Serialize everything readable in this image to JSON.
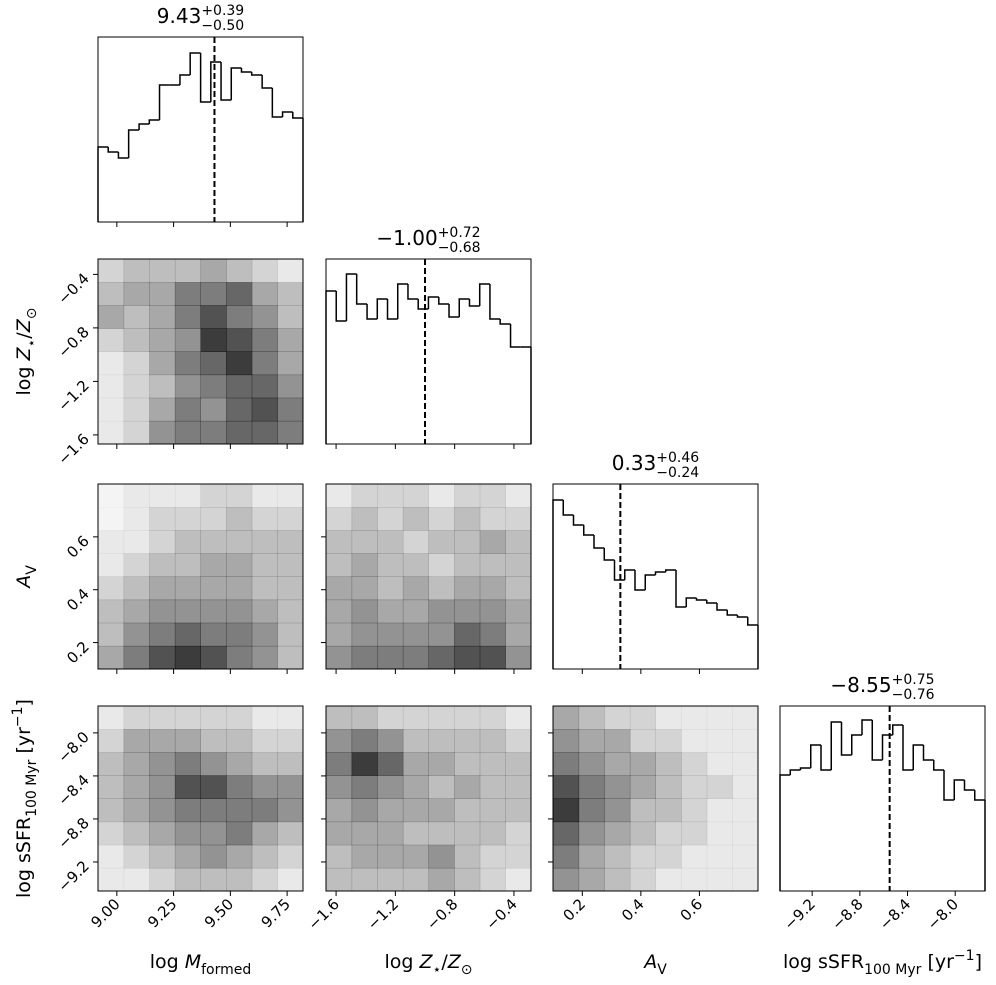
{
  "chart_data": {
    "type": "corner",
    "line_color": "#000000",
    "density_color": "#000000",
    "hist_ylim": [
      0,
      185
    ],
    "parameters": [
      {
        "label": [
          {
            "text": "log "
          },
          {
            "text": "M",
            "style": "italic"
          },
          {
            "text": "formed",
            "style": "sub"
          }
        ],
        "lim": [
          8.917,
          9.82
        ],
        "ticks": [
          {
            "value": 9,
            "label": "9.00"
          },
          9.25,
          {
            "value": 9.5,
            "label": "9.50"
          },
          9.75
        ],
        "median": 9.43,
        "upper": {
          "value": 0.39,
          "label": "+0.39"
        },
        "lower": {
          "value": -0.5,
          "label": "−0.50"
        },
        "bins": [
          8.917,
          8.962,
          9.007,
          9.052,
          9.098,
          9.143,
          9.188,
          9.233,
          9.278,
          9.323,
          9.369,
          9.414,
          9.459,
          9.504,
          9.549,
          9.594,
          9.64,
          9.685,
          9.73,
          9.775,
          9.82
        ],
        "counts": [
          75,
          70,
          64,
          92,
          98,
          102,
          137,
          137,
          147,
          169,
          120,
          160,
          122,
          154,
          150,
          147,
          134,
          105,
          110,
          104
        ]
      },
      {
        "label": [
          {
            "text": "log "
          },
          {
            "text": "Z",
            "style": "italic"
          },
          {
            "text": "⋆",
            "style": "sub"
          },
          {
            "text": "/"
          },
          {
            "text": "Z",
            "style": "italic"
          },
          {
            "text": "⊙",
            "style": "sub"
          }
        ],
        "lim": [
          -1.668,
          -0.285
        ],
        "ticks": [
          {
            "value": -1.6,
            "label": "−1.6"
          },
          {
            "value": -1.2,
            "label": "−1.2"
          },
          {
            "value": -0.8,
            "label": "−0.8"
          },
          {
            "value": -0.4,
            "label": "−0.4"
          }
        ],
        "median": {
          "value": -1,
          "label": "−1.00"
        },
        "upper": {
          "value": 0.72,
          "label": "+0.72"
        },
        "lower": {
          "value": -0.68,
          "label": "−0.68"
        },
        "bins": [
          -1.668,
          -1.599,
          -1.53,
          -1.461,
          -1.391,
          -1.322,
          -1.253,
          -1.184,
          -1.115,
          -1.046,
          -0.977,
          -0.907,
          -0.838,
          -0.769,
          -0.7,
          -0.631,
          -0.562,
          -0.493,
          -0.423,
          -0.354,
          -0.285
        ],
        "counts": [
          153,
          123,
          170,
          140,
          125,
          145,
          125,
          160,
          145,
          135,
          147,
          140,
          127,
          145,
          138,
          160,
          125,
          120,
          97,
          97
        ],
        "pairs": [
          [
            [
              0.2,
              0.3,
              0.3,
              0.3,
              0.4,
              0.3,
              0.2,
              0.1
            ],
            [
              0.3,
              0.4,
              0.4,
              0.6,
              0.6,
              0.7,
              0.4,
              0.3
            ],
            [
              0.4,
              0.3,
              0.4,
              0.6,
              0.8,
              0.6,
              0.5,
              0.3
            ],
            [
              0.2,
              0.3,
              0.4,
              0.5,
              0.9,
              0.8,
              0.6,
              0.4
            ],
            [
              0.1,
              0.2,
              0.4,
              0.6,
              0.7,
              0.9,
              0.6,
              0.4
            ],
            [
              0.1,
              0.2,
              0.3,
              0.5,
              0.6,
              0.7,
              0.7,
              0.5
            ],
            [
              0.1,
              0.2,
              0.4,
              0.6,
              0.5,
              0.7,
              0.8,
              0.6
            ],
            [
              0.1,
              0.2,
              0.5,
              0.6,
              0.6,
              0.7,
              0.7,
              0.6
            ]
          ]
        ]
      },
      {
        "label": [
          {
            "text": "A",
            "style": "italic"
          },
          {
            "text": "V",
            "style": "sub"
          }
        ],
        "lim": [
          0.1,
          0.8
        ],
        "ticks": [
          0.2,
          0.4,
          0.6
        ],
        "median": 0.33,
        "upper": {
          "value": 0.46,
          "label": "+0.46"
        },
        "lower": {
          "value": -0.24,
          "label": "−0.24"
        },
        "bins": [
          0.1,
          0.135,
          0.17,
          0.205,
          0.24,
          0.275,
          0.31,
          0.345,
          0.38,
          0.415,
          0.45,
          0.485,
          0.52,
          0.555,
          0.59,
          0.625,
          0.66,
          0.695,
          0.73,
          0.765,
          0.8
        ],
        "counts": [
          169,
          154,
          144,
          134,
          121,
          109,
          89,
          99,
          79,
          94,
          97,
          99,
          62,
          71,
          69,
          66,
          59,
          54,
          52,
          44
        ],
        "pairs": [
          [
            [
              0.05,
              0.1,
              0.1,
              0.1,
              0.2,
              0.2,
              0.1,
              0.1
            ],
            [
              0.05,
              0.1,
              0.2,
              0.2,
              0.2,
              0.3,
              0.2,
              0.2
            ],
            [
              0.1,
              0.1,
              0.2,
              0.3,
              0.3,
              0.3,
              0.3,
              0.3
            ],
            [
              0.1,
              0.2,
              0.3,
              0.3,
              0.4,
              0.4,
              0.3,
              0.3
            ],
            [
              0.2,
              0.3,
              0.4,
              0.4,
              0.4,
              0.4,
              0.3,
              0.3
            ],
            [
              0.3,
              0.4,
              0.5,
              0.5,
              0.5,
              0.5,
              0.4,
              0.3
            ],
            [
              0.3,
              0.5,
              0.6,
              0.7,
              0.6,
              0.6,
              0.5,
              0.3
            ],
            [
              0.4,
              0.6,
              0.8,
              0.9,
              0.8,
              0.6,
              0.5,
              0.3
            ]
          ],
          [
            [
              0.1,
              0.2,
              0.2,
              0.2,
              0.1,
              0.2,
              0.2,
              0.1
            ],
            [
              0.2,
              0.3,
              0.2,
              0.3,
              0.2,
              0.3,
              0.2,
              0.2
            ],
            [
              0.3,
              0.3,
              0.3,
              0.2,
              0.3,
              0.3,
              0.4,
              0.3
            ],
            [
              0.3,
              0.4,
              0.3,
              0.3,
              0.2,
              0.3,
              0.3,
              0.3
            ],
            [
              0.4,
              0.4,
              0.3,
              0.4,
              0.3,
              0.4,
              0.4,
              0.3
            ],
            [
              0.4,
              0.5,
              0.4,
              0.4,
              0.5,
              0.5,
              0.5,
              0.4
            ],
            [
              0.4,
              0.5,
              0.5,
              0.5,
              0.5,
              0.7,
              0.6,
              0.4
            ],
            [
              0.5,
              0.6,
              0.6,
              0.6,
              0.7,
              0.8,
              0.8,
              0.5
            ]
          ]
        ]
      },
      {
        "label": [
          {
            "text": "log sSFR"
          },
          {
            "text": "100 Myr",
            "style": "sub"
          },
          {
            "text": " [yr"
          },
          {
            "text": "−1",
            "style": "sup"
          },
          {
            "text": "]"
          }
        ],
        "lim": [
          -9.47,
          -7.75
        ],
        "ticks": [
          {
            "value": -9.2,
            "label": "−9.2"
          },
          {
            "value": -8.8,
            "label": "−8.8"
          },
          {
            "value": -8.4,
            "label": "−8.4"
          },
          {
            "value": -8,
            "label": "−8.0"
          }
        ],
        "median": {
          "value": -8.55,
          "label": "−8.55"
        },
        "upper": {
          "value": 0.75,
          "label": "+0.75"
        },
        "lower": {
          "value": -0.76,
          "label": "−0.76"
        },
        "bins": [
          -9.47,
          -9.384,
          -9.298,
          -9.212,
          -9.126,
          -9.04,
          -8.954,
          -8.868,
          -8.782,
          -8.696,
          -8.61,
          -8.524,
          -8.438,
          -8.352,
          -8.266,
          -8.18,
          -8.094,
          -8.008,
          -7.922,
          -7.836,
          -7.75
        ],
        "counts": [
          116,
          121,
          123,
          146,
          121,
          169,
          136,
          156,
          171,
          131,
          156,
          166,
          121,
          146,
          131,
          121,
          91,
          111,
          101,
          91
        ],
        "pairs": [
          [
            [
              0.1,
              0.2,
              0.2,
              0.2,
              0.2,
              0.2,
              0.1,
              0.1
            ],
            [
              0.2,
              0.4,
              0.4,
              0.4,
              0.3,
              0.3,
              0.2,
              0.2
            ],
            [
              0.3,
              0.4,
              0.5,
              0.6,
              0.5,
              0.4,
              0.3,
              0.3
            ],
            [
              0.3,
              0.4,
              0.5,
              0.8,
              0.8,
              0.6,
              0.5,
              0.5
            ],
            [
              0.3,
              0.4,
              0.5,
              0.6,
              0.6,
              0.6,
              0.6,
              0.5
            ],
            [
              0.2,
              0.3,
              0.4,
              0.5,
              0.5,
              0.6,
              0.4,
              0.3
            ],
            [
              0.1,
              0.2,
              0.3,
              0.4,
              0.5,
              0.4,
              0.3,
              0.2
            ],
            [
              0.1,
              0.1,
              0.2,
              0.3,
              0.3,
              0.3,
              0.2,
              0.1
            ]
          ],
          [
            [
              0.3,
              0.3,
              0.2,
              0.2,
              0.2,
              0.2,
              0.2,
              0.1
            ],
            [
              0.5,
              0.6,
              0.5,
              0.3,
              0.3,
              0.3,
              0.3,
              0.2
            ],
            [
              0.6,
              0.9,
              0.7,
              0.4,
              0.4,
              0.3,
              0.3,
              0.3
            ],
            [
              0.5,
              0.6,
              0.5,
              0.4,
              0.3,
              0.4,
              0.3,
              0.3
            ],
            [
              0.4,
              0.5,
              0.4,
              0.4,
              0.4,
              0.3,
              0.3,
              0.3
            ],
            [
              0.4,
              0.4,
              0.4,
              0.3,
              0.3,
              0.3,
              0.3,
              0.2
            ],
            [
              0.3,
              0.4,
              0.4,
              0.4,
              0.5,
              0.3,
              0.2,
              0.2
            ],
            [
              0.3,
              0.3,
              0.3,
              0.3,
              0.4,
              0.3,
              0.2,
              0.1
            ]
          ],
          [
            [
              0.4,
              0.3,
              0.2,
              0.2,
              0.1,
              0.1,
              0.1,
              0.1
            ],
            [
              0.5,
              0.4,
              0.4,
              0.2,
              0.2,
              0.1,
              0.1,
              0.1
            ],
            [
              0.6,
              0.5,
              0.4,
              0.4,
              0.3,
              0.2,
              0.1,
              0.1
            ],
            [
              0.8,
              0.6,
              0.5,
              0.4,
              0.3,
              0.2,
              0.2,
              0.1
            ],
            [
              0.9,
              0.6,
              0.5,
              0.3,
              0.3,
              0.2,
              0.1,
              0.1
            ],
            [
              0.7,
              0.5,
              0.4,
              0.3,
              0.2,
              0.2,
              0.1,
              0.1
            ],
            [
              0.6,
              0.4,
              0.3,
              0.2,
              0.2,
              0.1,
              0.1,
              0.1
            ],
            [
              0.5,
              0.4,
              0.3,
              0.2,
              0.1,
              0.1,
              0.1,
              0.1
            ]
          ]
        ]
      }
    ]
  }
}
